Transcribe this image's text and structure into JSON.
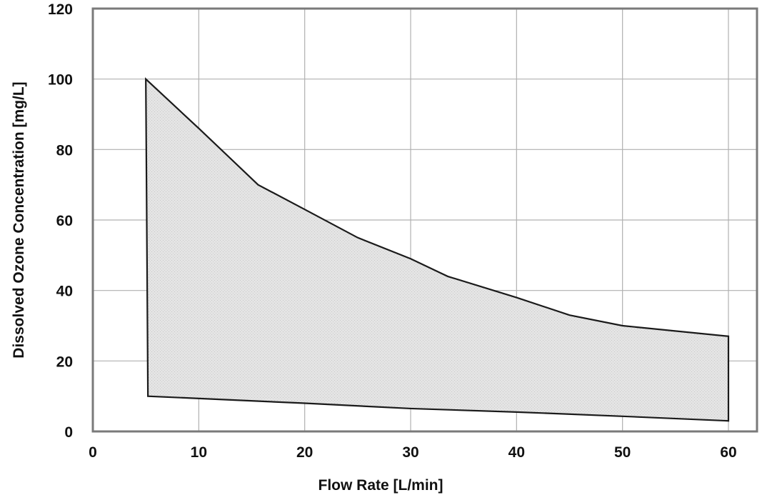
{
  "chart_data": {
    "type": "area",
    "title": "",
    "xlabel": "Flow Rate [L/min]",
    "ylabel": "Dissolved Ozone Concentration [mg/L]",
    "xlim": [
      0,
      60
    ],
    "ylim": [
      0,
      120
    ],
    "x_ticks": [
      0,
      10,
      20,
      30,
      40,
      50,
      60
    ],
    "y_ticks": [
      0,
      20,
      40,
      60,
      80,
      100,
      120
    ],
    "x_tick_labels": [
      "0",
      "10",
      "20",
      "30",
      "40",
      "50",
      "60"
    ],
    "y_tick_labels": [
      "0",
      "20",
      "40",
      "60",
      "80",
      "100",
      "120"
    ],
    "grid": true,
    "legend": "none",
    "fill_color": "#e2e2e2",
    "line_color": "#1a1a1a",
    "grid_color": "#b0b0b0",
    "frame_color": "#7a7a7a",
    "upper_boundary": [
      {
        "x": 5,
        "y": 100
      },
      {
        "x": 10,
        "y": 86
      },
      {
        "x": 15.6,
        "y": 70
      },
      {
        "x": 20,
        "y": 63
      },
      {
        "x": 25,
        "y": 55
      },
      {
        "x": 30,
        "y": 49
      },
      {
        "x": 33.5,
        "y": 44
      },
      {
        "x": 40,
        "y": 38
      },
      {
        "x": 45,
        "y": 33
      },
      {
        "x": 50,
        "y": 30
      },
      {
        "x": 60,
        "y": 27
      }
    ],
    "lower_boundary": [
      {
        "x": 5.2,
        "y": 10
      },
      {
        "x": 20,
        "y": 8
      },
      {
        "x": 30,
        "y": 6.5
      },
      {
        "x": 40,
        "y": 5.5
      },
      {
        "x": 50,
        "y": 4.3
      },
      {
        "x": 60,
        "y": 3
      }
    ]
  }
}
